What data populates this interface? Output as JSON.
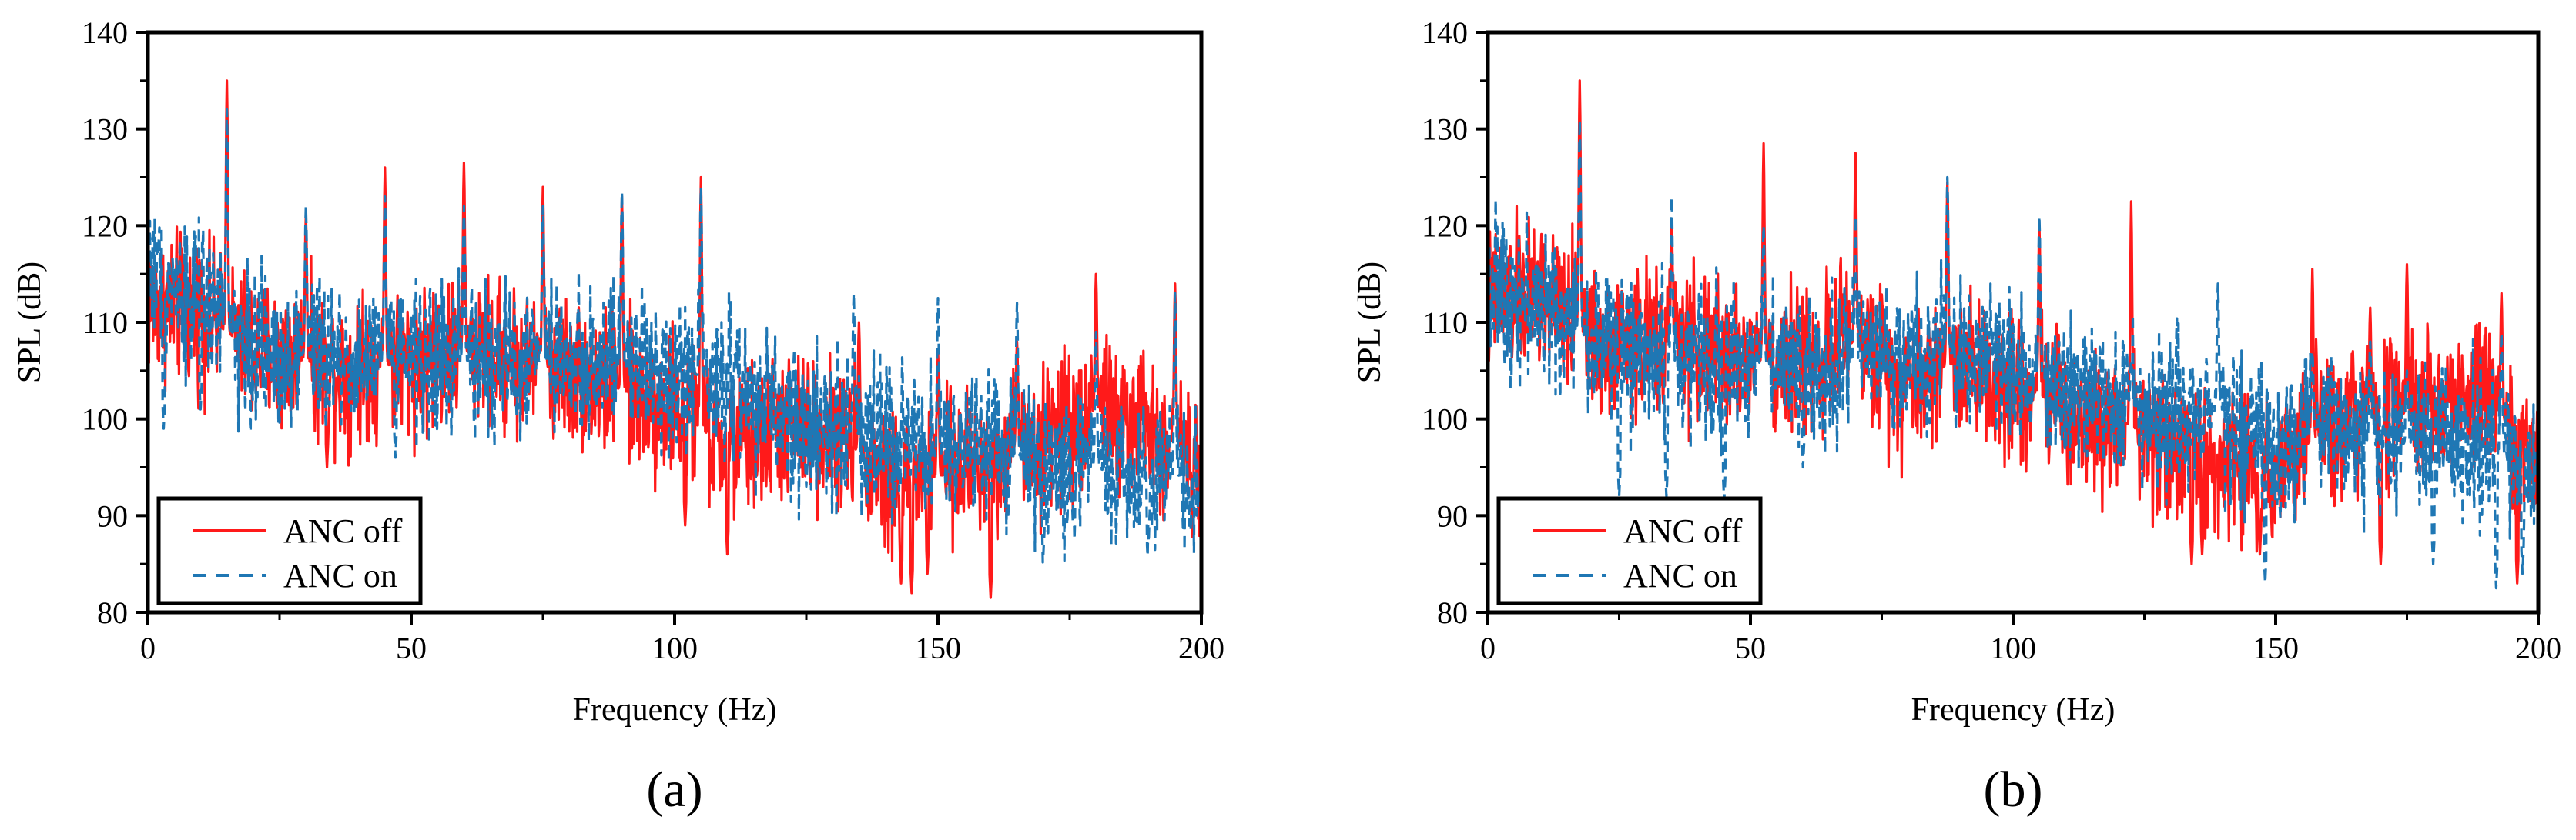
{
  "figure": {
    "panel_labels": [
      "(a)",
      "(b)"
    ]
  },
  "chart_data": [
    {
      "type": "line",
      "panel": "(a)",
      "title": "",
      "xlabel": "Frequency (Hz)",
      "ylabel": "SPL (dB)",
      "xlim": [
        0,
        200
      ],
      "ylim": [
        80,
        140
      ],
      "x_ticks": [
        0,
        50,
        100,
        150,
        200
      ],
      "y_ticks": [
        80,
        90,
        100,
        110,
        120,
        130,
        140
      ],
      "grid": false,
      "legend_position": "bottom-left",
      "series": [
        {
          "name": "ANC off",
          "color": "#ff1a1a",
          "style": "solid",
          "peaks": [
            [
              15,
              135
            ],
            [
              30,
              121
            ],
            [
              45,
              126
            ],
            [
              60,
              126.5
            ],
            [
              75,
              124
            ],
            [
              90,
              123
            ],
            [
              105,
              125
            ],
            [
              135,
              110
            ],
            [
              150,
              107
            ],
            [
              165,
              108
            ],
            [
              180,
              115
            ],
            [
              195,
              114
            ]
          ],
          "dips": [
            [
              34,
              95
            ],
            [
              102,
              89
            ],
            [
              110,
              86
            ],
            [
              143,
              83
            ],
            [
              145,
              82
            ],
            [
              148,
              84
            ],
            [
              160,
              81.5
            ]
          ],
          "baseline": [
            [
              0,
              112
            ],
            [
              10,
              111
            ],
            [
              20,
              107
            ],
            [
              40,
              105
            ],
            [
              60,
              107
            ],
            [
              80,
              105
            ],
            [
              100,
              101
            ],
            [
              110,
              97
            ],
            [
              120,
              99
            ],
            [
              130,
              99
            ],
            [
              140,
              94
            ],
            [
              150,
              94
            ],
            [
              160,
              96
            ],
            [
              170,
              98
            ],
            [
              180,
              101
            ],
            [
              190,
              99
            ],
            [
              200,
              96
            ]
          ]
        },
        {
          "name": "ANC on",
          "color": "#1f77b4",
          "style": "dashed",
          "peaks": [
            [
              15,
              132
            ],
            [
              30,
              122
            ],
            [
              45,
              123
            ],
            [
              60,
              122
            ],
            [
              75,
              122
            ],
            [
              90,
              123.5
            ],
            [
              105,
              124
            ],
            [
              134,
              113
            ],
            [
              150,
              112.5
            ],
            [
              165,
              112
            ],
            [
              180,
              109
            ],
            [
              195,
              113
            ]
          ],
          "dips": [
            [
              3,
              99
            ],
            [
              10,
              101
            ],
            [
              47,
              96
            ],
            [
              70,
              101
            ],
            [
              95,
              100
            ],
            [
              125,
              93
            ],
            [
              170,
              86
            ],
            [
              190,
              88
            ],
            [
              198,
              90
            ]
          ],
          "baseline": [
            [
              0,
              116
            ],
            [
              10,
              112
            ],
            [
              20,
              107
            ],
            [
              40,
              106
            ],
            [
              60,
              106
            ],
            [
              80,
              106
            ],
            [
              100,
              105
            ],
            [
              110,
              104
            ],
            [
              120,
              100
            ],
            [
              130,
              99
            ],
            [
              140,
              98
            ],
            [
              150,
              96
            ],
            [
              160,
              97
            ],
            [
              170,
              95
            ],
            [
              180,
              95
            ],
            [
              190,
              93
            ],
            [
              200,
              95
            ]
          ]
        }
      ]
    },
    {
      "type": "line",
      "panel": "(b)",
      "title": "",
      "xlabel": "Frequency (Hz)",
      "ylabel": "SPL (dB)",
      "xlim": [
        0,
        200
      ],
      "ylim": [
        80,
        140
      ],
      "x_ticks": [
        0,
        50,
        100,
        150,
        200
      ],
      "y_ticks": [
        80,
        90,
        100,
        110,
        120,
        130,
        140
      ],
      "grid": false,
      "legend_position": "bottom-left",
      "series": [
        {
          "name": "ANC off",
          "color": "#ff1a1a",
          "style": "solid",
          "peaks": [
            [
              17.5,
              135
            ],
            [
              35,
              120
            ],
            [
              52.5,
              128.5
            ],
            [
              70,
              127.5
            ],
            [
              87.5,
              124.5
            ],
            [
              105,
              120
            ],
            [
              122.5,
              122.5
            ],
            [
              157,
              115.5
            ],
            [
              168,
              111.5
            ],
            [
              175,
              116
            ],
            [
              193,
              113
            ]
          ],
          "dips": [
            [
              134,
              85
            ],
            [
              136,
              86
            ],
            [
              147,
              86
            ],
            [
              170,
              85
            ],
            [
              196,
              83
            ]
          ],
          "baseline": [
            [
              0,
              112
            ],
            [
              10,
              113
            ],
            [
              20,
              108
            ],
            [
              35,
              108
            ],
            [
              50,
              106
            ],
            [
              60,
              106
            ],
            [
              70,
              108
            ],
            [
              80,
              104
            ],
            [
              90,
              106
            ],
            [
              100,
              104
            ],
            [
              110,
              101
            ],
            [
              120,
              100
            ],
            [
              130,
              97
            ],
            [
              140,
              95
            ],
            [
              150,
              95
            ],
            [
              160,
              99
            ],
            [
              170,
              100
            ],
            [
              180,
              101
            ],
            [
              190,
              103
            ],
            [
              200,
              94
            ]
          ]
        },
        {
          "name": "ANC on",
          "color": "#1f77b4",
          "style": "dashed",
          "peaks": [
            [
              17.5,
              131
            ],
            [
              35,
              123
            ],
            [
              52.5,
              120
            ],
            [
              70,
              121
            ],
            [
              87.5,
              125
            ],
            [
              105,
              121
            ],
            [
              122.5,
              106
            ],
            [
              139,
              114
            ],
            [
              157,
              107
            ],
            [
              168,
              108
            ],
            [
              175,
              105
            ],
            [
              193,
              109
            ]
          ],
          "dips": [
            [
              25,
              92
            ],
            [
              34,
              92
            ],
            [
              45,
              91.5
            ],
            [
              60,
              95
            ],
            [
              148,
              83
            ],
            [
              180,
              85
            ],
            [
              192,
              82.5
            ],
            [
              197,
              84
            ]
          ],
          "baseline": [
            [
              0,
              114
            ],
            [
              10,
              112
            ],
            [
              20,
              108
            ],
            [
              35,
              106
            ],
            [
              50,
              106
            ],
            [
              60,
              105
            ],
            [
              70,
              106
            ],
            [
              80,
              106
            ],
            [
              90,
              107
            ],
            [
              100,
              106
            ],
            [
              110,
              103
            ],
            [
              120,
              102
            ],
            [
              130,
              100
            ],
            [
              140,
              101
            ],
            [
              150,
              96
            ],
            [
              160,
              100
            ],
            [
              170,
              97
            ],
            [
              180,
              98
            ],
            [
              190,
              97
            ],
            [
              200,
              94
            ]
          ]
        }
      ]
    }
  ]
}
